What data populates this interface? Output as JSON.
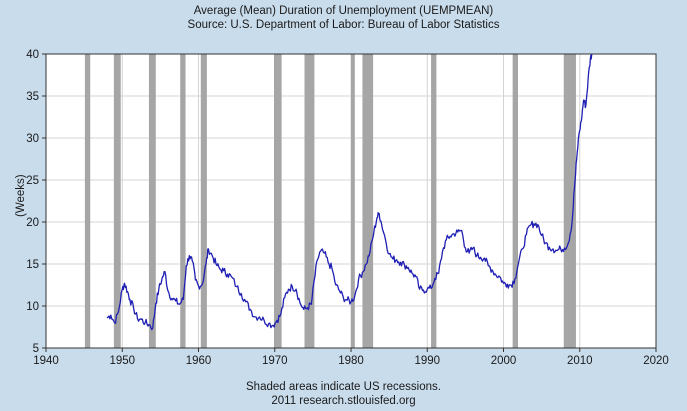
{
  "chart_data": {
    "type": "line",
    "title": "Average (Mean) Duration of Unemployment (UEMPMEAN)",
    "subtitle": "Source: U.S. Department of Labor: Bureau of Labor Statistics",
    "ylabel": "(Weeks)",
    "xlabel": "",
    "footnote_1": "Shaded areas indicate US recessions.",
    "footnote_2": "2011 research.stlouisfed.org",
    "xlim": [
      1940,
      2020
    ],
    "ylim": [
      5,
      40
    ],
    "xticks": [
      1940,
      1950,
      1960,
      1970,
      1980,
      1990,
      2000,
      2010,
      2020
    ],
    "yticks": [
      5,
      10,
      15,
      20,
      25,
      30,
      35,
      40
    ],
    "grid": true,
    "colors": {
      "line": "#1f1fb4",
      "recession": "#a6a6a6",
      "plot_bg": "#ffffff",
      "page_bg": "#c9dcec",
      "grid": "#d4d4d4"
    },
    "recessions": [
      [
        1945.1,
        1945.8
      ],
      [
        1948.9,
        1949.8
      ],
      [
        1953.5,
        1954.4
      ],
      [
        1957.6,
        1958.3
      ],
      [
        1960.3,
        1961.1
      ],
      [
        1969.9,
        1970.9
      ],
      [
        1973.9,
        1975.2
      ],
      [
        1980.0,
        1980.5
      ],
      [
        1981.5,
        1982.9
      ],
      [
        1990.5,
        1991.2
      ],
      [
        2001.2,
        2001.9
      ],
      [
        2007.9,
        2009.5
      ]
    ],
    "series": [
      {
        "values": [
          [
            1948.0,
            8.6
          ],
          [
            1948.5,
            8.9
          ],
          [
            1949.0,
            8.0
          ],
          [
            1949.5,
            9.3
          ],
          [
            1950.0,
            12.0
          ],
          [
            1950.3,
            12.7
          ],
          [
            1950.7,
            11.7
          ],
          [
            1951.0,
            10.8
          ],
          [
            1951.5,
            9.7
          ],
          [
            1952.0,
            8.5
          ],
          [
            1952.5,
            8.4
          ],
          [
            1953.0,
            8.0
          ],
          [
            1953.5,
            7.8
          ],
          [
            1954.0,
            7.4
          ],
          [
            1954.4,
            10.3
          ],
          [
            1954.8,
            12.0
          ],
          [
            1955.2,
            13.2
          ],
          [
            1955.6,
            14.1
          ],
          [
            1956.0,
            11.8
          ],
          [
            1956.5,
            10.9
          ],
          [
            1957.0,
            10.6
          ],
          [
            1957.5,
            10.2
          ],
          [
            1958.0,
            10.8
          ],
          [
            1958.4,
            14.8
          ],
          [
            1958.8,
            16.0
          ],
          [
            1959.2,
            15.3
          ],
          [
            1959.6,
            13.1
          ],
          [
            1960.0,
            12.4
          ],
          [
            1960.5,
            12.6
          ],
          [
            1961.0,
            15.1
          ],
          [
            1961.3,
            16.8
          ],
          [
            1961.8,
            16.0
          ],
          [
            1962.3,
            15.0
          ],
          [
            1962.8,
            14.4
          ],
          [
            1963.3,
            14.2
          ],
          [
            1963.8,
            13.8
          ],
          [
            1964.3,
            13.5
          ],
          [
            1965.0,
            12.3
          ],
          [
            1965.6,
            11.5
          ],
          [
            1966.2,
            10.5
          ],
          [
            1966.8,
            9.6
          ],
          [
            1967.4,
            8.7
          ],
          [
            1968.0,
            8.7
          ],
          [
            1968.6,
            8.3
          ],
          [
            1969.2,
            7.9
          ],
          [
            1969.8,
            7.7
          ],
          [
            1970.3,
            8.3
          ],
          [
            1970.8,
            9.0
          ],
          [
            1971.3,
            11.0
          ],
          [
            1971.8,
            12.0
          ],
          [
            1972.3,
            12.3
          ],
          [
            1972.8,
            12.0
          ],
          [
            1973.3,
            10.4
          ],
          [
            1973.8,
            9.6
          ],
          [
            1974.3,
            9.8
          ],
          [
            1974.8,
            10.2
          ],
          [
            1975.2,
            13.2
          ],
          [
            1975.6,
            15.5
          ],
          [
            1976.0,
            16.5
          ],
          [
            1976.5,
            16.3
          ],
          [
            1977.0,
            15.2
          ],
          [
            1977.5,
            14.5
          ],
          [
            1978.0,
            12.5
          ],
          [
            1978.5,
            11.8
          ],
          [
            1979.0,
            11.0
          ],
          [
            1979.5,
            10.7
          ],
          [
            1980.0,
            10.5
          ],
          [
            1980.5,
            11.2
          ],
          [
            1981.0,
            13.2
          ],
          [
            1981.5,
            14.0
          ],
          [
            1982.0,
            15.0
          ],
          [
            1982.5,
            16.5
          ],
          [
            1983.0,
            18.8
          ],
          [
            1983.4,
            20.5
          ],
          [
            1983.7,
            21.0
          ],
          [
            1984.0,
            19.8
          ],
          [
            1984.5,
            18.0
          ],
          [
            1985.0,
            16.2
          ],
          [
            1985.5,
            15.6
          ],
          [
            1986.0,
            15.5
          ],
          [
            1986.5,
            15.2
          ],
          [
            1987.0,
            14.9
          ],
          [
            1987.5,
            14.6
          ],
          [
            1988.0,
            13.9
          ],
          [
            1988.5,
            13.5
          ],
          [
            1989.0,
            12.0
          ],
          [
            1989.5,
            11.9
          ],
          [
            1990.0,
            12.0
          ],
          [
            1990.5,
            12.1
          ],
          [
            1991.0,
            13.3
          ],
          [
            1991.5,
            13.9
          ],
          [
            1992.0,
            16.5
          ],
          [
            1992.5,
            17.9
          ],
          [
            1993.0,
            18.3
          ],
          [
            1993.5,
            18.6
          ],
          [
            1994.0,
            18.8
          ],
          [
            1994.5,
            19.0
          ],
          [
            1995.0,
            16.9
          ],
          [
            1995.5,
            16.3
          ],
          [
            1996.0,
            16.9
          ],
          [
            1996.5,
            16.0
          ],
          [
            1997.0,
            15.8
          ],
          [
            1997.5,
            15.7
          ],
          [
            1998.0,
            14.8
          ],
          [
            1998.5,
            14.3
          ],
          [
            1999.0,
            13.7
          ],
          [
            1999.5,
            13.5
          ],
          [
            2000.0,
            12.7
          ],
          [
            2000.5,
            12.6
          ],
          [
            2001.0,
            12.5
          ],
          [
            2001.5,
            13.2
          ],
          [
            2002.0,
            15.3
          ],
          [
            2002.5,
            16.8
          ],
          [
            2003.0,
            18.5
          ],
          [
            2003.5,
            19.6
          ],
          [
            2004.0,
            19.8
          ],
          [
            2004.5,
            19.7
          ],
          [
            2005.0,
            18.4
          ],
          [
            2005.5,
            17.5
          ],
          [
            2006.0,
            17.0
          ],
          [
            2006.5,
            16.8
          ],
          [
            2007.0,
            16.6
          ],
          [
            2007.5,
            16.8
          ],
          [
            2008.0,
            16.9
          ],
          [
            2008.5,
            17.5
          ],
          [
            2009.0,
            20.0
          ],
          [
            2009.3,
            24.0
          ],
          [
            2009.6,
            27.5
          ],
          [
            2009.9,
            30.5
          ],
          [
            2010.2,
            32.0
          ],
          [
            2010.5,
            34.5
          ],
          [
            2010.8,
            33.8
          ],
          [
            2011.1,
            37.0
          ],
          [
            2011.4,
            39.5
          ],
          [
            2011.6,
            40.0
          ]
        ]
      }
    ]
  }
}
